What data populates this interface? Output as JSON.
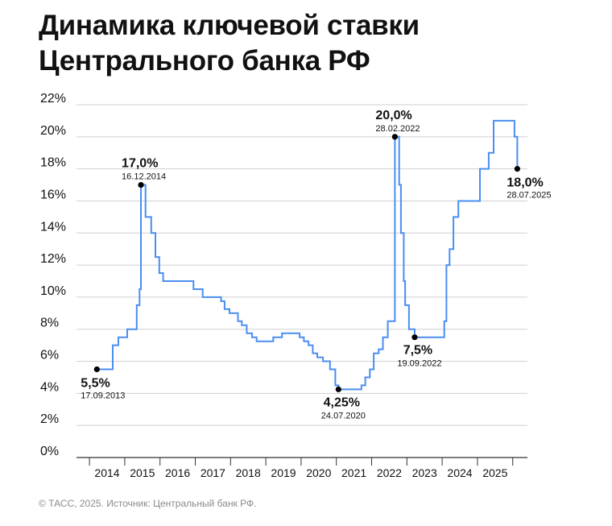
{
  "title": {
    "line1": "Динамика ключевой ставки",
    "line2": "Центрального банка РФ"
  },
  "footer": "© ТАСС, 2025. Источник: Центральный банк РФ.",
  "colors": {
    "line": "#4a8ef0",
    "grid": "#cfcfcf",
    "text": "#111111",
    "muted": "#8a8a8a"
  },
  "chart_data": {
    "type": "line",
    "step": true,
    "title": "",
    "xlabel": "",
    "ylabel": "",
    "xlim": [
      2013.0,
      2026.0
    ],
    "ylim": [
      0,
      22
    ],
    "grid": true,
    "y_ticks": [
      0,
      2,
      4,
      6,
      8,
      10,
      12,
      14,
      16,
      18,
      20,
      22
    ],
    "y_tick_labels": [
      "0%",
      "2%",
      "4%",
      "6%",
      "8%",
      "10%",
      "12%",
      "14%",
      "16%",
      "18%",
      "20%",
      "22%"
    ],
    "x_ticks": [
      2014,
      2015,
      2016,
      2017,
      2018,
      2019,
      2020,
      2021,
      2022,
      2023,
      2024,
      2025
    ],
    "x_tick_labels": [
      "2014",
      "2015",
      "2016",
      "2017",
      "2018",
      "2019",
      "2020",
      "2021",
      "2022",
      "2023",
      "2024",
      "2025"
    ],
    "series": [
      {
        "points": [
          [
            2013.71,
            5.5
          ],
          [
            2014.16,
            7.0
          ],
          [
            2014.32,
            7.5
          ],
          [
            2014.57,
            8.0
          ],
          [
            2014.84,
            9.5
          ],
          [
            2014.92,
            10.5
          ],
          [
            2014.96,
            17.0
          ],
          [
            2015.09,
            15.0
          ],
          [
            2015.25,
            14.0
          ],
          [
            2015.37,
            12.5
          ],
          [
            2015.48,
            11.5
          ],
          [
            2015.59,
            11.0
          ],
          [
            2016.45,
            10.5
          ],
          [
            2016.71,
            10.0
          ],
          [
            2017.23,
            9.75
          ],
          [
            2017.33,
            9.25
          ],
          [
            2017.47,
            9.0
          ],
          [
            2017.71,
            8.5
          ],
          [
            2017.82,
            8.25
          ],
          [
            2017.96,
            7.75
          ],
          [
            2018.11,
            7.5
          ],
          [
            2018.24,
            7.25
          ],
          [
            2018.71,
            7.5
          ],
          [
            2018.96,
            7.75
          ],
          [
            2019.46,
            7.5
          ],
          [
            2019.58,
            7.25
          ],
          [
            2019.71,
            7.0
          ],
          [
            2019.83,
            6.5
          ],
          [
            2019.96,
            6.25
          ],
          [
            2020.12,
            6.0
          ],
          [
            2020.32,
            5.5
          ],
          [
            2020.47,
            4.5
          ],
          [
            2020.56,
            4.25
          ],
          [
            2021.21,
            4.5
          ],
          [
            2021.32,
            5.0
          ],
          [
            2021.45,
            5.5
          ],
          [
            2021.56,
            6.5
          ],
          [
            2021.7,
            6.75
          ],
          [
            2021.82,
            7.5
          ],
          [
            2021.96,
            8.5
          ],
          [
            2022.16,
            20.0
          ],
          [
            2022.28,
            17.0
          ],
          [
            2022.33,
            14.0
          ],
          [
            2022.41,
            11.0
          ],
          [
            2022.45,
            9.5
          ],
          [
            2022.56,
            8.0
          ],
          [
            2022.72,
            7.5
          ],
          [
            2023.56,
            8.5
          ],
          [
            2023.62,
            12.0
          ],
          [
            2023.71,
            13.0
          ],
          [
            2023.82,
            15.0
          ],
          [
            2023.96,
            16.0
          ],
          [
            2024.57,
            18.0
          ],
          [
            2024.82,
            19.0
          ],
          [
            2024.96,
            21.0
          ],
          [
            2025.55,
            20.0
          ],
          [
            2025.63,
            18.0
          ]
        ]
      }
    ],
    "annotations": [
      {
        "value": "5,5%",
        "date": "17.09.2013",
        "x": 2013.71,
        "y": 5.5,
        "anchor": "below-left"
      },
      {
        "value": "17,0%",
        "date": "16.12.2014",
        "x": 2014.96,
        "y": 17.0,
        "anchor": "above-left"
      },
      {
        "value": "4,25%",
        "date": "24.07.2020",
        "x": 2020.56,
        "y": 4.25,
        "anchor": "below"
      },
      {
        "value": "20,0%",
        "date": "28.02.2022",
        "x": 2022.16,
        "y": 20.0,
        "anchor": "above-left"
      },
      {
        "value": "7,5%",
        "date": "19.09.2022",
        "x": 2022.72,
        "y": 7.5,
        "anchor": "below"
      },
      {
        "value": "18,0%",
        "date": "28.07.2025",
        "x": 2025.63,
        "y": 18.0,
        "anchor": "below-right"
      }
    ]
  }
}
